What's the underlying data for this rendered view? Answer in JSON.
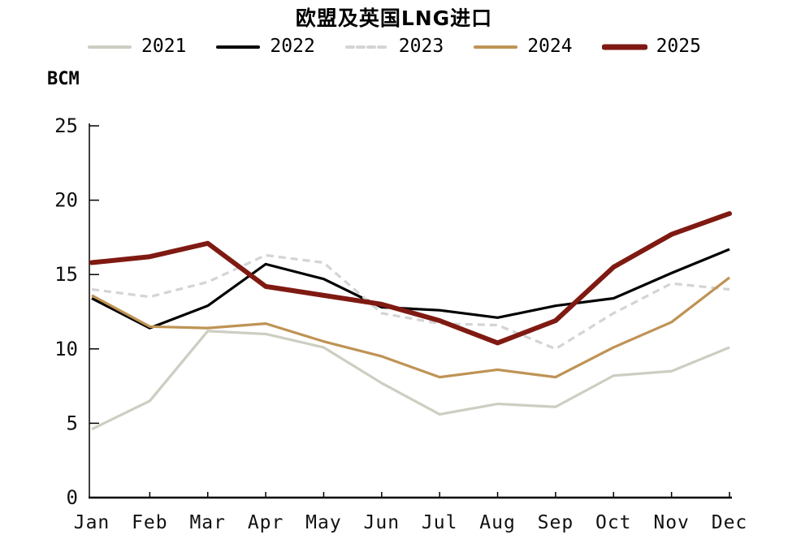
{
  "chart_data": {
    "type": "line",
    "title": "欧盟及英国LNG进口",
    "ylabel": "BCM",
    "xlabel": "",
    "categories": [
      "Jan",
      "Feb",
      "Mar",
      "Apr",
      "May",
      "Jun",
      "Jul",
      "Aug",
      "Sep",
      "Oct",
      "Nov",
      "Dec"
    ],
    "ylim": [
      0,
      25
    ],
    "yticks": [
      0,
      5,
      10,
      15,
      20,
      25
    ],
    "grid": false,
    "legend_position": "top",
    "axis_color": "#000000",
    "series": [
      {
        "name": "2021",
        "color": "#cdcec2",
        "style": "solid",
        "width": 3.2,
        "values": [
          4.6,
          6.5,
          11.2,
          11.0,
          10.1,
          7.7,
          5.6,
          6.3,
          6.1,
          8.2,
          8.5,
          10.1
        ]
      },
      {
        "name": "2022",
        "color": "#000000",
        "style": "solid",
        "width": 3.2,
        "values": [
          13.4,
          11.4,
          12.9,
          15.7,
          14.7,
          12.8,
          12.6,
          12.1,
          12.9,
          13.4,
          15.1,
          16.7
        ]
      },
      {
        "name": "2023",
        "color": "#d4d4d4",
        "style": "dashed",
        "width": 3.2,
        "values": [
          14.0,
          13.5,
          14.5,
          16.3,
          15.8,
          12.4,
          11.7,
          11.6,
          10.0,
          12.4,
          14.4,
          14.0
        ]
      },
      {
        "name": "2024",
        "color": "#bf9355",
        "style": "solid",
        "width": 3.2,
        "values": [
          13.6,
          11.5,
          11.4,
          11.7,
          10.5,
          9.5,
          8.1,
          8.6,
          8.1,
          10.1,
          11.8,
          14.8
        ]
      },
      {
        "name": "2025",
        "color": "#7f1a12",
        "style": "solid",
        "width": 6,
        "values": [
          15.8,
          16.2,
          17.1,
          14.2,
          13.6,
          13.0,
          11.9,
          10.4,
          11.9,
          15.5,
          17.7,
          19.1
        ]
      }
    ]
  }
}
